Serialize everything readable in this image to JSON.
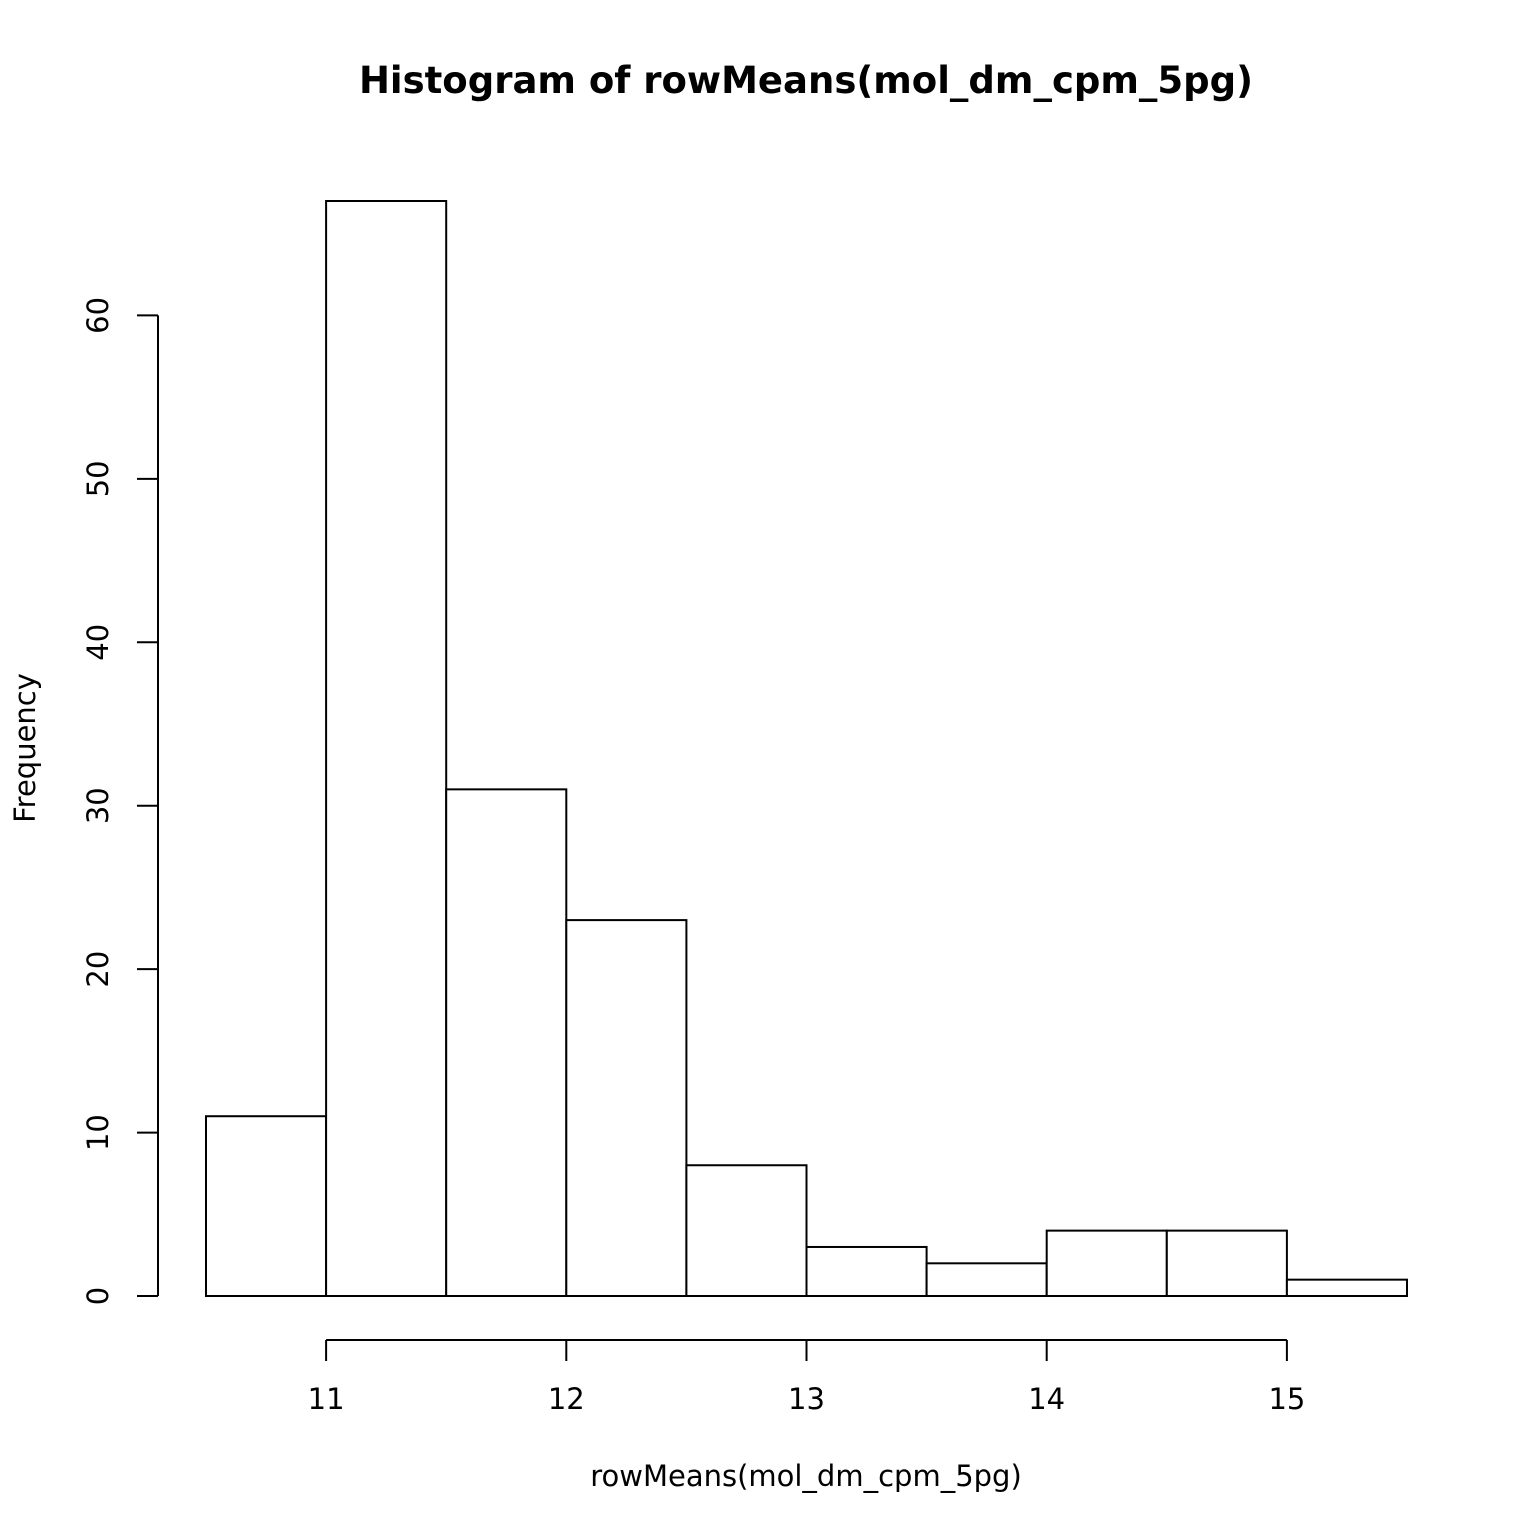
{
  "chart_data": {
    "type": "bar",
    "title": "Histogram of rowMeans(mol_dm_cpm_5pg)",
    "xlabel": "rowMeans(mol_dm_cpm_5pg)",
    "ylabel": "Frequency",
    "bins": [
      {
        "start": 10.5,
        "end": 11.0,
        "count": 11
      },
      {
        "start": 11.0,
        "end": 11.5,
        "count": 67
      },
      {
        "start": 11.5,
        "end": 12.0,
        "count": 31
      },
      {
        "start": 12.0,
        "end": 12.5,
        "count": 23
      },
      {
        "start": 12.5,
        "end": 13.0,
        "count": 8
      },
      {
        "start": 13.0,
        "end": 13.5,
        "count": 3
      },
      {
        "start": 13.5,
        "end": 14.0,
        "count": 2
      },
      {
        "start": 14.0,
        "end": 14.5,
        "count": 4
      },
      {
        "start": 14.5,
        "end": 15.0,
        "count": 4
      },
      {
        "start": 15.0,
        "end": 15.5,
        "count": 1
      }
    ],
    "xlim": [
      10.5,
      15.5
    ],
    "ylim": [
      0,
      67
    ],
    "x_ticks": [
      11,
      12,
      13,
      14,
      15
    ],
    "y_ticks": [
      0,
      10,
      20,
      30,
      40,
      50,
      60
    ],
    "grid": false,
    "legend": "none",
    "bar_fill": "#ffffff",
    "bar_stroke": "#000000"
  }
}
